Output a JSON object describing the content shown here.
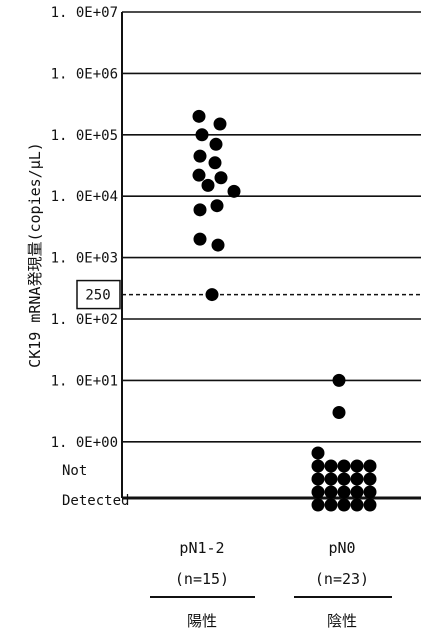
{
  "chart_data": {
    "type": "scatter",
    "title": "",
    "xlabel": "",
    "ylabel": "CK19 mRNA発現量(copies/μL)",
    "y_scale": "log",
    "ylim": [
      1,
      10000000
    ],
    "y_ticks": [
      {
        "value": 10000000,
        "label": "1. 0E+07"
      },
      {
        "value": 1000000,
        "label": "1. 0E+06"
      },
      {
        "value": 100000,
        "label": "1. 0E+05"
      },
      {
        "value": 10000,
        "label": "1. 0E+04"
      },
      {
        "value": 1000,
        "label": "1. 0E+03"
      },
      {
        "value": 100,
        "label": "1. 0E+02"
      },
      {
        "value": 10,
        "label": "1. 0E+01"
      },
      {
        "value": 1,
        "label": "1. 0E+00"
      }
    ],
    "not_detected_label_line1": "Not",
    "not_detected_label_line2": "Detected",
    "cutoff": {
      "value": 250,
      "label": "250"
    },
    "groups": [
      {
        "name": "pN1-2",
        "n_label": "(n=15)",
        "label_jp": "陽性"
      },
      {
        "name": "pN0",
        "n_label": "(n=23)",
        "label_jp": "陰性"
      }
    ],
    "series": [
      {
        "group": "pN1-2",
        "values": [
          200000,
          150000,
          100000,
          70000,
          45000,
          35000,
          22000,
          20000,
          15000,
          12000,
          7000,
          6000,
          2000,
          1600,
          250
        ]
      },
      {
        "group": "pN0",
        "values": [
          10,
          3
        ],
        "not_detected_count": 21
      }
    ]
  }
}
